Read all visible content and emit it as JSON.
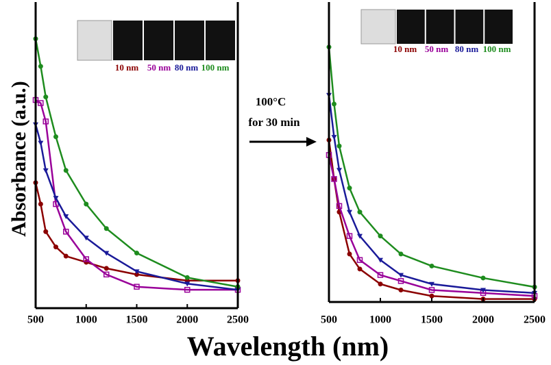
{
  "figure": {
    "ylabel": "Absorbance (a.u.)",
    "xlabel": "Wavelength (nm)",
    "annotation": [
      "100°C",
      "for 30 min"
    ]
  },
  "chart_data": [
    {
      "type": "line",
      "x": [
        500,
        550,
        600,
        700,
        800,
        1000,
        1200,
        1500,
        2000,
        2500
      ],
      "xlim": [
        500,
        2500
      ],
      "xticks": [
        500,
        1000,
        1500,
        2000,
        2500
      ],
      "ylim": [
        0,
        1
      ],
      "series": [
        {
          "name": "10 nm",
          "color": "#8b0000",
          "marker": "circle",
          "values": [
            0.41,
            0.34,
            0.25,
            0.2,
            0.17,
            0.15,
            0.13,
            0.11,
            0.09,
            0.09
          ]
        },
        {
          "name": "50 nm",
          "color": "#990099",
          "marker": "square",
          "values": [
            0.68,
            0.67,
            0.61,
            0.34,
            0.25,
            0.16,
            0.11,
            0.07,
            0.06,
            0.06
          ]
        },
        {
          "name": "80 nm",
          "color": "#1a1a99",
          "marker": "triangle",
          "values": [
            0.6,
            0.54,
            0.45,
            0.36,
            0.3,
            0.23,
            0.18,
            0.12,
            0.08,
            0.06
          ]
        },
        {
          "name": "100 nm",
          "color": "#1e8c1e",
          "marker": "circle",
          "values": [
            0.88,
            0.79,
            0.69,
            0.56,
            0.45,
            0.34,
            0.26,
            0.18,
            0.1,
            0.07
          ]
        }
      ]
    },
    {
      "type": "line",
      "x": [
        500,
        550,
        600,
        700,
        800,
        1000,
        1200,
        1500,
        2000,
        2500
      ],
      "xlim": [
        500,
        2500
      ],
      "xticks": [
        500,
        1000,
        1500,
        2000,
        2500
      ],
      "ylim": [
        0,
        1
      ],
      "series": [
        {
          "name": "10 nm",
          "color": "#8b0000",
          "marker": "circle",
          "values": [
            0.54,
            0.41,
            0.3,
            0.16,
            0.11,
            0.06,
            0.04,
            0.02,
            0.01,
            0.01
          ]
        },
        {
          "name": "50 nm",
          "color": "#990099",
          "marker": "square",
          "values": [
            0.49,
            0.41,
            0.32,
            0.22,
            0.14,
            0.09,
            0.07,
            0.04,
            0.03,
            0.02
          ]
        },
        {
          "name": "80 nm",
          "color": "#1a1a99",
          "marker": "triangle",
          "values": [
            0.69,
            0.55,
            0.44,
            0.3,
            0.22,
            0.14,
            0.09,
            0.06,
            0.04,
            0.03
          ]
        },
        {
          "name": "100 nm",
          "color": "#1e8c1e",
          "marker": "circle",
          "values": [
            0.85,
            0.66,
            0.52,
            0.38,
            0.3,
            0.22,
            0.16,
            0.12,
            0.08,
            0.05
          ]
        }
      ]
    }
  ]
}
